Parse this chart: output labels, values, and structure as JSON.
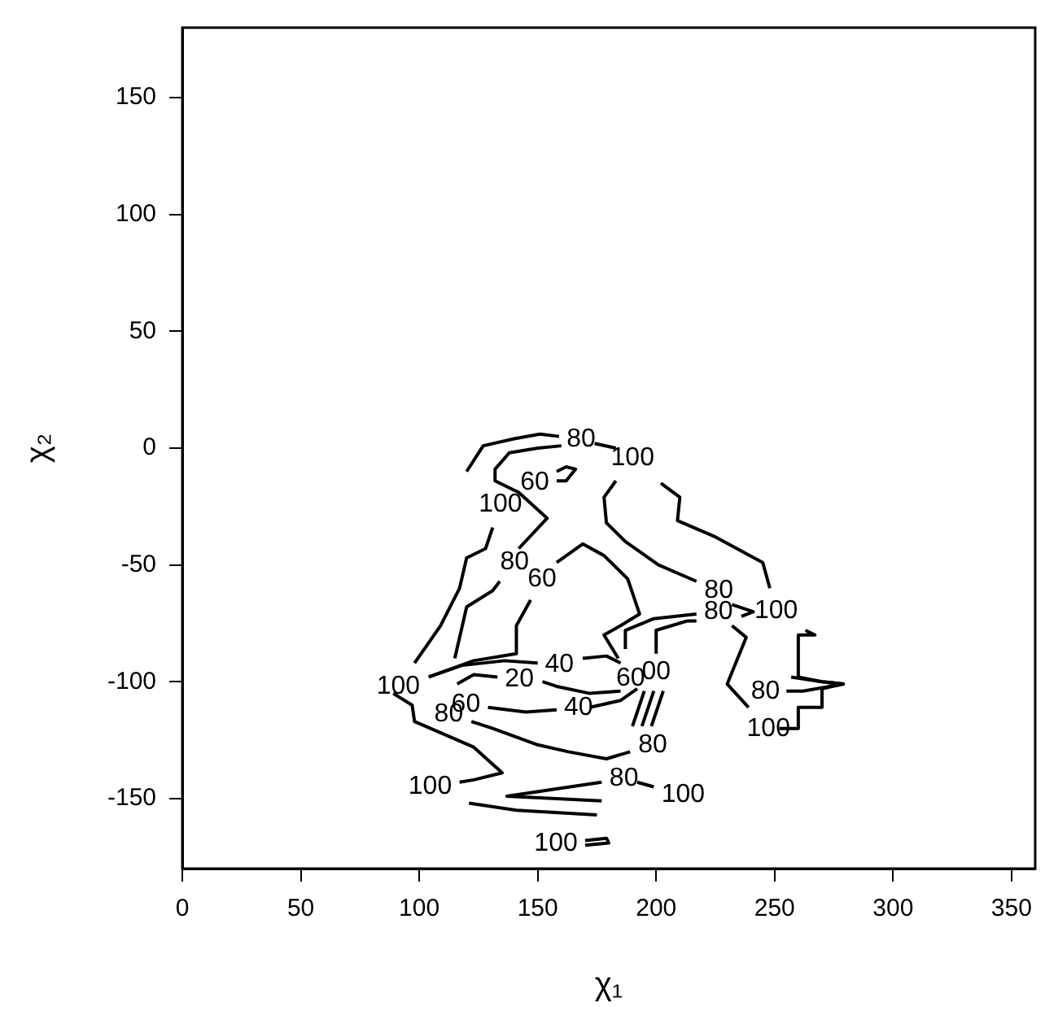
{
  "chart_data": {
    "type": "line",
    "xlabel": "χ₁",
    "ylabel": "χ₂",
    "xlim": [
      0,
      360
    ],
    "ylim": [
      -180,
      180
    ],
    "xticks": [
      0,
      50,
      100,
      150,
      200,
      250,
      300,
      350
    ],
    "yticks": [
      -150,
      -100,
      -50,
      0,
      50,
      100,
      150
    ],
    "grid": false,
    "legend": false,
    "marker": "none",
    "line_style": "solid",
    "series": [
      {
        "color": "#000000",
        "x": [
          98,
          109,
          117,
          120,
          128,
          131
        ],
        "values": [
          -92,
          -76,
          -60,
          -47,
          -43,
          -34
        ]
      },
      {
        "color": "#000000",
        "x": [
          120,
          127,
          140,
          151,
          159
        ],
        "values": [
          -10,
          1,
          4,
          6,
          5
        ]
      },
      {
        "color": "#000000",
        "x": [
          174,
          183
        ],
        "values": [
          2,
          0
        ]
      },
      {
        "color": "#000000",
        "x": [
          115,
          120,
          131,
          134
        ],
        "values": [
          -90,
          -68,
          -61,
          -57
        ]
      },
      {
        "color": "#000000",
        "x": [
          142,
          154,
          142,
          132,
          132,
          138,
          150,
          160
        ],
        "values": [
          -43,
          -30,
          -19,
          -14,
          -9,
          -2,
          0,
          1
        ]
      },
      {
        "color": "#000000",
        "x": [
          158,
          162,
          166,
          162,
          158
        ],
        "values": [
          -10,
          -8,
          -9,
          -14,
          -14
        ]
      },
      {
        "color": "#000000",
        "x": [
          104,
          123,
          141,
          141,
          147
        ],
        "values": [
          -98,
          -91,
          -88,
          -76,
          -65
        ]
      },
      {
        "color": "#000000",
        "x": [
          158,
          169,
          178,
          188,
          193,
          185,
          178,
          184
        ],
        "values": [
          -49,
          -41,
          -46,
          -56,
          -71,
          -76,
          -80,
          -90
        ]
      },
      {
        "color": "#000000",
        "x": [
          183,
          178,
          179,
          187,
          201,
          217
        ],
        "values": [
          -14,
          -21,
          -32,
          -40,
          -50,
          -57
        ]
      },
      {
        "color": "#000000",
        "x": [
          232,
          241,
          236
        ],
        "values": [
          -67,
          -70,
          -72
        ]
      },
      {
        "color": "#000000",
        "x": [
          232,
          238,
          230,
          239
        ],
        "values": [
          -76,
          -81,
          -101,
          -111
        ]
      },
      {
        "color": "#000000",
        "x": [
          202,
          210,
          209,
          225,
          245,
          248
        ],
        "values": [
          -15,
          -21,
          -31,
          -38,
          -49,
          -60
        ]
      },
      {
        "color": "#000000",
        "x": [
          263,
          267,
          260,
          260,
          270,
          279,
          270,
          270,
          260,
          260,
          252
        ],
        "values": [
          -78,
          -80,
          -80,
          -98,
          -100,
          -101,
          -103,
          -111,
          -111,
          -120,
          -120
        ]
      },
      {
        "color": "#000000",
        "x": [
          257,
          270,
          279,
          262,
          255
        ],
        "values": [
          -98,
          -100,
          -101,
          -104,
          -104
        ]
      },
      {
        "color": "#000000",
        "x": [
          187,
          187,
          199,
          217
        ],
        "values": [
          -86,
          -78,
          -73,
          -71
        ]
      },
      {
        "color": "#000000",
        "x": [
          200,
          200,
          213,
          217
        ],
        "values": [
          -88,
          -78,
          -74,
          -74
        ]
      },
      {
        "color": "#000000",
        "x": [
          104,
          118,
          136,
          150
        ],
        "values": [
          -98,
          -93,
          -91,
          -92
        ]
      },
      {
        "color": "#000000",
        "x": [
          169,
          179,
          185
        ],
        "values": [
          -90,
          -89,
          -92
        ]
      },
      {
        "color": "#000000",
        "x": [
          116,
          123,
          133
        ],
        "values": [
          -101,
          -97,
          -98
        ]
      },
      {
        "color": "#000000",
        "x": [
          152,
          158,
          172,
          185
        ],
        "values": [
          -100,
          -102,
          -105,
          -104
        ]
      },
      {
        "color": "#000000",
        "x": [
          129,
          145,
          158
        ],
        "values": [
          -111,
          -113,
          -112
        ]
      },
      {
        "color": "#000000",
        "x": [
          172,
          185,
          192
        ],
        "values": [
          -111,
          -108,
          -103
        ]
      },
      {
        "color": "#000000",
        "x": [
          122,
          131,
          150,
          163,
          179,
          189
        ],
        "values": [
          -117,
          -120,
          -127,
          -130,
          -133,
          -130
        ]
      },
      {
        "color": "#000000",
        "x": [
          195,
          190
        ],
        "values": [
          -104,
          -119
        ]
      },
      {
        "color": "#000000",
        "x": [
          199,
          194
        ],
        "values": [
          -104,
          -119
        ]
      },
      {
        "color": "#000000",
        "x": [
          203,
          198
        ],
        "values": [
          -104,
          -119
        ]
      },
      {
        "color": "#000000",
        "x": [
          89,
          97,
          98,
          123,
          135,
          123,
          117
        ],
        "values": [
          -105,
          -110,
          -117,
          -128,
          -139,
          -142,
          -143
        ]
      },
      {
        "color": "#000000",
        "x": [
          121,
          141,
          175
        ],
        "values": [
          -152,
          -155,
          -157
        ]
      },
      {
        "color": "#000000",
        "x": [
          177,
          137,
          177
        ],
        "values": [
          -143,
          -149,
          -151
        ]
      },
      {
        "color": "#000000",
        "x": [
          192,
          199
        ],
        "values": [
          -143,
          -145
        ]
      },
      {
        "color": "#000000",
        "x": [
          170,
          179,
          180,
          170
        ],
        "values": [
          -168,
          -167,
          -169,
          -170
        ]
      }
    ],
    "annotations": [
      {
        "text": "100",
        "x": 131,
        "y": -34
      },
      {
        "text": "80",
        "x": 159,
        "y": 5
      },
      {
        "text": "100",
        "x": 183,
        "y": -14
      },
      {
        "text": "60",
        "x": 158,
        "y": -10
      },
      {
        "text": "80",
        "x": 134,
        "y": -57
      },
      {
        "text": "60",
        "x": 147,
        "y": -65
      },
      {
        "text": "80",
        "x": 217,
        "y": -57
      },
      {
        "text": "80",
        "x": 217,
        "y": -71
      },
      {
        "text": "100",
        "x": 248,
        "y": -60
      },
      {
        "text": "80",
        "x": 255,
        "y": -104
      },
      {
        "text": "100",
        "x": 239,
        "y": -111
      },
      {
        "text": "100",
        "x": 98,
        "y": -92
      },
      {
        "text": "40",
        "x": 150,
        "y": -92
      },
      {
        "text": "60",
        "x": 184,
        "y": -90
      },
      {
        "text": "00",
        "x": 200,
        "y": -88
      },
      {
        "text": "20",
        "x": 133,
        "y": -98
      },
      {
        "text": "60",
        "x": 129,
        "y": -111
      },
      {
        "text": "80",
        "x": 122,
        "y": -117
      },
      {
        "text": "40",
        "x": 158,
        "y": -112
      },
      {
        "text": "80",
        "x": 189,
        "y": -130
      },
      {
        "text": "100",
        "x": 117,
        "y": -143
      },
      {
        "text": "80",
        "x": 177,
        "y": -143
      },
      {
        "text": "100",
        "x": 199,
        "y": -145
      },
      {
        "text": "100",
        "x": 170,
        "y": -168
      }
    ]
  }
}
